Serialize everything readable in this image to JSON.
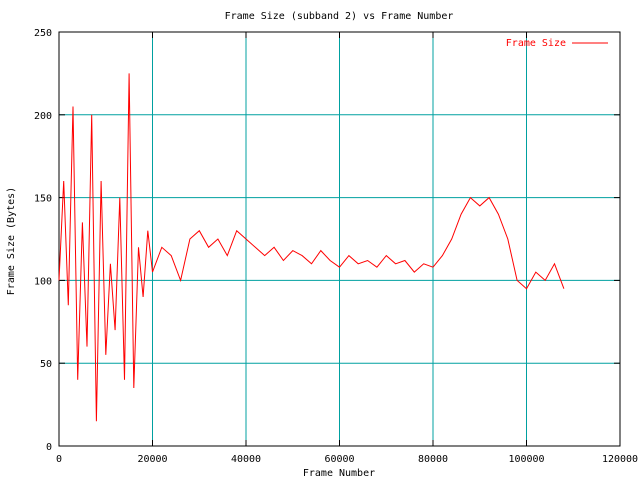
{
  "chart_data": {
    "type": "line",
    "title": "Frame Size (subband 2) vs Frame Number",
    "xlabel": "Frame Number",
    "ylabel": "Frame Size (Bytes)",
    "xlim": [
      0,
      120000
    ],
    "ylim": [
      0,
      250
    ],
    "xticks": [
      0,
      20000,
      40000,
      60000,
      80000,
      100000,
      120000
    ],
    "yticks": [
      0,
      50,
      100,
      150,
      200,
      250
    ],
    "grid": true,
    "legend_position": "top-right",
    "series": [
      {
        "name": "Frame Size",
        "color": "#ff0000",
        "x": [
          0,
          1000,
          2000,
          3000,
          4000,
          5000,
          6000,
          7000,
          8000,
          9000,
          10000,
          11000,
          12000,
          13000,
          14000,
          15000,
          16000,
          17000,
          18000,
          19000,
          20000,
          22000,
          24000,
          26000,
          28000,
          30000,
          32000,
          34000,
          36000,
          38000,
          40000,
          42000,
          44000,
          46000,
          48000,
          50000,
          52000,
          54000,
          56000,
          58000,
          60000,
          62000,
          64000,
          66000,
          68000,
          70000,
          72000,
          74000,
          76000,
          78000,
          80000,
          82000,
          84000,
          86000,
          88000,
          90000,
          92000,
          94000,
          96000,
          98000,
          100000,
          102000,
          104000,
          106000,
          108000
        ],
        "y": [
          100,
          160,
          85,
          205,
          40,
          135,
          60,
          200,
          15,
          160,
          55,
          110,
          70,
          150,
          40,
          225,
          35,
          120,
          90,
          130,
          105,
          120,
          115,
          100,
          125,
          130,
          120,
          125,
          115,
          130,
          125,
          120,
          115,
          120,
          112,
          118,
          115,
          110,
          118,
          112,
          108,
          115,
          110,
          112,
          108,
          115,
          110,
          112,
          105,
          110,
          108,
          115,
          125,
          140,
          150,
          145,
          150,
          140,
          125,
          100,
          95,
          105,
          100,
          110,
          95
        ]
      }
    ]
  }
}
